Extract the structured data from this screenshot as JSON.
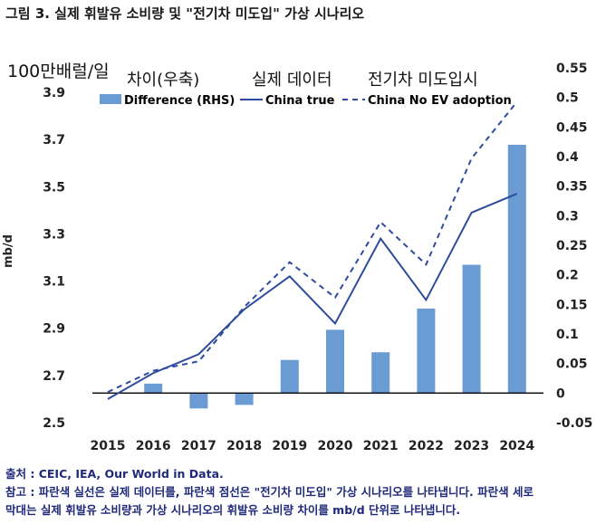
{
  "title": "그림 3. 실제 휘발유 소비량 및 \"전기차 미도입\" 가상 시나리오",
  "korean_labels": {
    "unit": "100만배럴/일",
    "difference": "차이(우축)",
    "true": "실제 데이터",
    "no_ev": "전기차 미도입시"
  },
  "source": "출처 : CEIC, IEA, Our World in Data.",
  "note_line1": "참고 : 파란색 실선은 실제 데이터를, 파란색 점선은 \"전기차 미도입\" 가상 시나리오를 나타냅니다. 파란색 세로",
  "note_line2": "막대는 실제 휘발유 소비량과 가상 시나리오의 휘발유 소비량 차이를 mb/d 단위로 나타냅니다.",
  "chart_data": {
    "type": "bar+line",
    "categories": [
      "2015",
      "2016",
      "2017",
      "2018",
      "2019",
      "2020",
      "2021",
      "2022",
      "2023",
      "2024"
    ],
    "ylabel": "mb/d",
    "ylim": [
      2.5,
      3.9
    ],
    "yticks": [
      "3.9",
      "3.7",
      "3.5",
      "3.3",
      "3.1",
      "2.9",
      "2.7",
      "2.5"
    ],
    "y2lim": [
      -0.05,
      0.55
    ],
    "y2ticks": [
      "0.55",
      "0.5",
      "0.45",
      "0.4",
      "0.35",
      "0.3",
      "0.25",
      "0.2",
      "0.15",
      "0.1",
      "0.05",
      "0",
      "-0.05"
    ],
    "legend_position": "top",
    "colors": {
      "bar": "#6a9bd3",
      "line": "#2e4a9e"
    },
    "series": [
      {
        "name": "Difference (RHS)",
        "type": "bar",
        "axis": "right",
        "values": [
          0,
          0.016,
          -0.026,
          -0.02,
          0.056,
          0.107,
          0.069,
          0.143,
          0.217,
          0.42
        ]
      },
      {
        "name": "China true",
        "type": "line",
        "axis": "left",
        "values": [
          2.6,
          2.71,
          2.79,
          2.98,
          3.12,
          2.92,
          3.28,
          3.02,
          3.39,
          3.47
        ]
      },
      {
        "name": "China No EV adoption",
        "type": "dashed-line",
        "axis": "left",
        "values": [
          2.63,
          2.72,
          2.76,
          2.99,
          3.18,
          3.03,
          3.35,
          3.17,
          3.62,
          3.86
        ]
      }
    ]
  }
}
